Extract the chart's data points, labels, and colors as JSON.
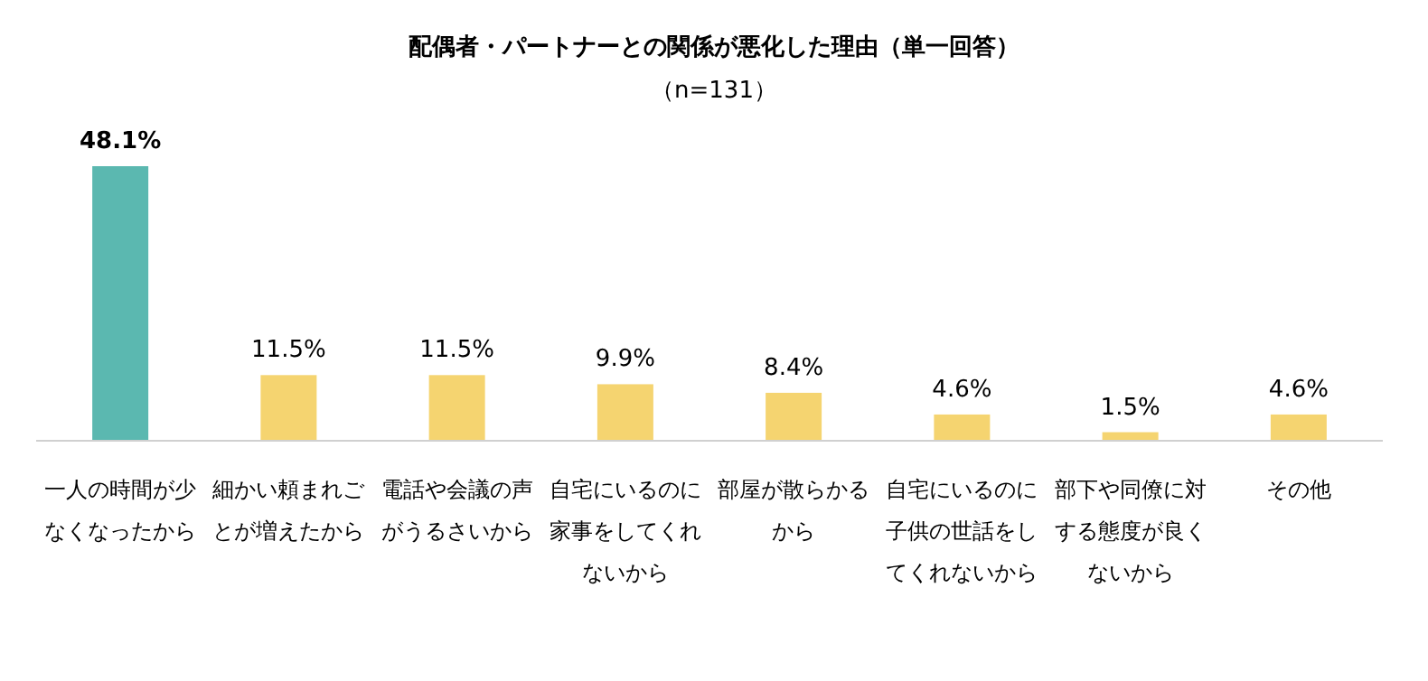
{
  "chart_data": {
    "type": "bar",
    "title": "配偶者・パートナーとの関係が悪化した理由（単一回答）",
    "subtitle": "（n=131）",
    "categories": [
      "一人の時間が少なくなったから",
      "細かい頼まれごとが増えたから",
      "電話や会議の声がうるさいから",
      "自宅にいるのに家事をしてくれないから",
      "部屋が散らかるから",
      "自宅にいるのに子供の世話をしてくれないから",
      "部下や同僚に対する態度が良くないから",
      "その他"
    ],
    "values": [
      48.1,
      11.5,
      11.5,
      9.9,
      8.4,
      4.6,
      1.5,
      4.6
    ],
    "value_labels": [
      "48.1%",
      "11.5%",
      "11.5%",
      "9.9%",
      "8.4%",
      "4.6%",
      "1.5%",
      "4.6%"
    ],
    "colors": [
      "#5bb8b0",
      "#f5d470",
      "#f5d470",
      "#f5d470",
      "#f5d470",
      "#f5d470",
      "#f5d470",
      "#f5d470"
    ],
    "grid": false
  }
}
